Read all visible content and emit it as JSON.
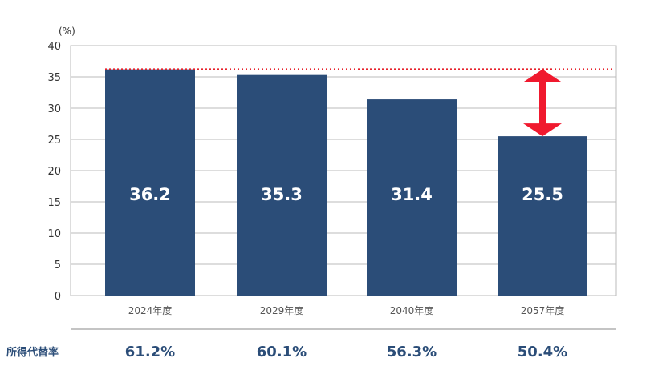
{
  "chart_data": {
    "type": "bar",
    "unit_label": "(%)",
    "categories": [
      "2024年度",
      "2029年度",
      "2040年度",
      "2057年度"
    ],
    "values": [
      36.2,
      35.3,
      31.4,
      25.5
    ],
    "data_labels": [
      "36.2",
      "35.3",
      "31.4",
      "25.5"
    ],
    "ylim": [
      0,
      40
    ],
    "yticks": [
      0,
      5,
      10,
      15,
      20,
      25,
      30,
      35,
      40
    ],
    "grid": true,
    "reference_line": {
      "value": 36.2,
      "style": "dotted",
      "color": "#e8202a"
    },
    "arrow": {
      "from": 25.5,
      "to": 36.2,
      "category_index": 3,
      "color": "#f0192e"
    },
    "bar_color": "#2b4d78"
  },
  "replacement_rate": {
    "title": "所得代替率",
    "values": [
      "61.2%",
      "60.1%",
      "56.3%",
      "50.4%"
    ]
  }
}
